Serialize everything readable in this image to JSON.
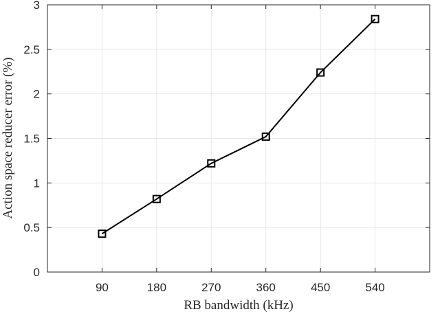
{
  "chart_data": {
    "type": "line",
    "xlabel": "RB bandwidth (kHz)",
    "ylabel": "Action space reducer error (%)",
    "x": [
      90,
      180,
      270,
      360,
      450,
      540
    ],
    "xticks": [
      "90",
      "180",
      "270",
      "360",
      "450",
      "540"
    ],
    "xlim": [
      0,
      630
    ],
    "ylim": [
      0,
      3
    ],
    "yticks": [
      "0",
      "0.5",
      "1",
      "1.5",
      "2",
      "2.5",
      "3"
    ],
    "grid": true,
    "series": [
      {
        "values": [
          0.43,
          0.82,
          1.22,
          1.52,
          2.24,
          2.84
        ],
        "marker": "square",
        "color": "#000000"
      }
    ]
  }
}
